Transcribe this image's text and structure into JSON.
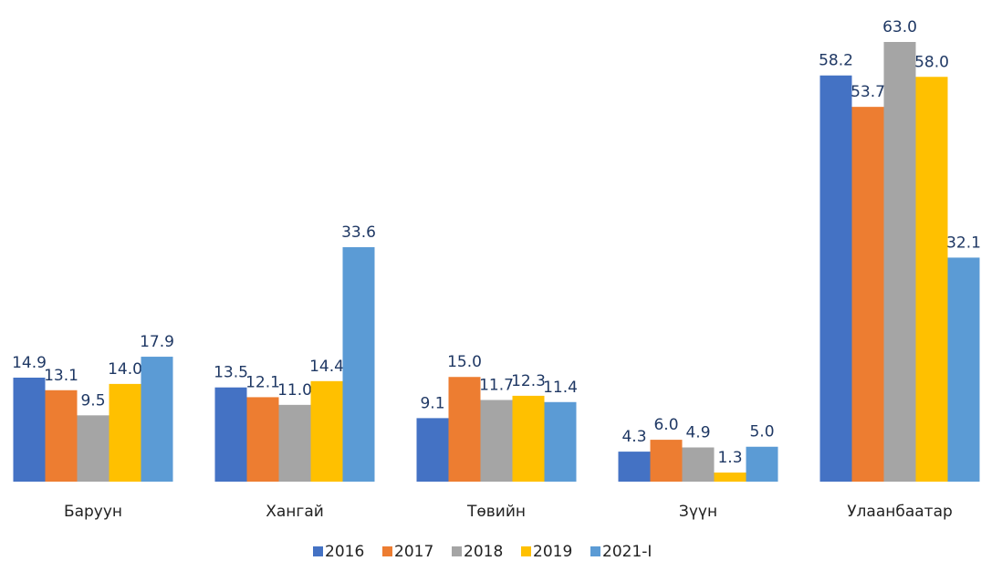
{
  "chart_data": {
    "type": "bar",
    "categories": [
      "Баруун",
      "Хангай",
      "Төвийн",
      "Зүүн",
      "Улаанбаатар"
    ],
    "series": [
      {
        "name": "2016",
        "color": "#4472c4",
        "values": [
          14.9,
          13.5,
          9.1,
          4.3,
          58.2
        ],
        "value_labels": [
          "14.9",
          "13.5",
          "9.1",
          "4.3",
          "58.2"
        ]
      },
      {
        "name": "2017",
        "color": "#ed7d31",
        "values": [
          13.1,
          12.1,
          15,
          6,
          53.7
        ],
        "value_labels": [
          "13.1",
          "12.1",
          "15.0",
          "6.0",
          "53.7"
        ]
      },
      {
        "name": "2018",
        "color": "#a5a5a5",
        "values": [
          9.5,
          11,
          11.7,
          4.9,
          63
        ],
        "value_labels": [
          "9.5",
          "11.0",
          "11.7",
          "4.9",
          "63.0"
        ]
      },
      {
        "name": "2019",
        "color": "#ffc000",
        "values": [
          14,
          14.4,
          12.3,
          1.3,
          58
        ],
        "value_labels": [
          "14.0",
          "14.4",
          "12.3",
          "1.3",
          "58.0"
        ]
      },
      {
        "name": "2021-I",
        "color": "#5b9bd5",
        "values": [
          17.9,
          33.6,
          11.4,
          5,
          32.1
        ],
        "value_labels": [
          "17.9",
          "33.6",
          "11.4",
          "5.0",
          "32.1"
        ]
      }
    ],
    "legend": "bottom"
  }
}
